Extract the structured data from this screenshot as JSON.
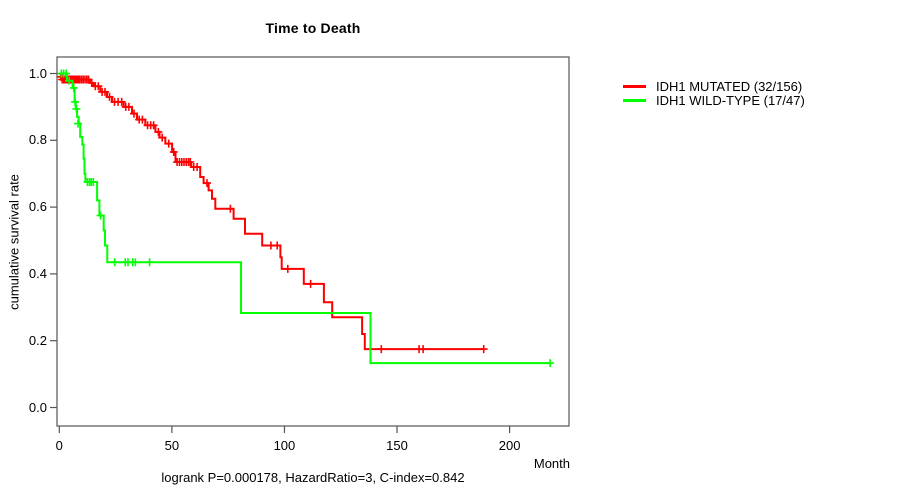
{
  "title": "Time to Death",
  "footer": "logrank P=0.000178, HazardRatio=3, C-index=0.842",
  "axes": {
    "x_label": "Month",
    "y_label": "cumulative survival rate",
    "x_ticks": [
      {
        "label": "0",
        "value": 0
      },
      {
        "label": "50",
        "value": 50
      },
      {
        "label": "100",
        "value": 100
      },
      {
        "label": "150",
        "value": 150
      },
      {
        "label": "200",
        "value": 200
      }
    ],
    "y_ticks": [
      {
        "label": "0.0",
        "value": 0.0
      },
      {
        "label": "0.2",
        "value": 0.2
      },
      {
        "label": "0.4",
        "value": 0.4
      },
      {
        "label": "0.6",
        "value": 0.6
      },
      {
        "label": "0.8",
        "value": 0.8
      },
      {
        "label": "1.0",
        "value": 1.0
      }
    ],
    "frame_color": "#555555",
    "text_color": "#000000"
  },
  "legend": {
    "items": [
      {
        "label": "IDH1 MUTATED (32/156)",
        "color": "#ff0000"
      },
      {
        "label": "IDH1 WILD-TYPE (17/47)",
        "color": "#00ff00"
      }
    ]
  },
  "chart_data": {
    "type": "line",
    "subtype": "kaplan-meier-step",
    "title": "Time to Death",
    "xlabel": "Month",
    "ylabel": "cumulative survival rate",
    "xlim": [
      0,
      226
    ],
    "ylim": [
      0,
      1.05
    ],
    "grid": false,
    "legend_position": "right-outside-top",
    "annotation": "logrank P=0.000178, HazardRatio=3, C-index=0.842",
    "series": [
      {
        "name": "IDH1 MUTATED (32/156)",
        "color": "#ff0000",
        "steps": [
          [
            0,
            1.0
          ],
          [
            1.0,
            0.99
          ],
          [
            2.5,
            0.982
          ],
          [
            13.8,
            0.972
          ],
          [
            15.2,
            0.962
          ],
          [
            18.2,
            0.945
          ],
          [
            21.2,
            0.93
          ],
          [
            23.4,
            0.915
          ],
          [
            28.6,
            0.9
          ],
          [
            32.3,
            0.88
          ],
          [
            34.5,
            0.862
          ],
          [
            38.2,
            0.845
          ],
          [
            42.7,
            0.825
          ],
          [
            44.5,
            0.808
          ],
          [
            47.1,
            0.79
          ],
          [
            50.1,
            0.765
          ],
          [
            51.6,
            0.735
          ],
          [
            58.6,
            0.72
          ],
          [
            62.6,
            0.69
          ],
          [
            64.1,
            0.672
          ],
          [
            66.3,
            0.65
          ],
          [
            67.8,
            0.625
          ],
          [
            69.3,
            0.595
          ],
          [
            77.4,
            0.565
          ],
          [
            82.5,
            0.52
          ],
          [
            90.1,
            0.485
          ],
          [
            98.2,
            0.45
          ],
          [
            98.8,
            0.415
          ],
          [
            108.6,
            0.37
          ],
          [
            117.5,
            0.315
          ],
          [
            121.2,
            0.27
          ],
          [
            134.5,
            0.22
          ],
          [
            135.7,
            0.175
          ]
        ],
        "end_month": 188.5,
        "censors": [
          [
            0.6,
            0.99
          ],
          [
            1.3,
            0.982
          ],
          [
            1.9,
            0.982
          ],
          [
            2.6,
            0.982
          ],
          [
            3.2,
            0.982
          ],
          [
            3.8,
            0.982
          ],
          [
            4.4,
            0.982
          ],
          [
            5.0,
            0.982
          ],
          [
            5.6,
            0.982
          ],
          [
            6.2,
            0.982
          ],
          [
            6.9,
            0.982
          ],
          [
            7.6,
            0.982
          ],
          [
            8.3,
            0.982
          ],
          [
            9.0,
            0.982
          ],
          [
            9.8,
            0.982
          ],
          [
            10.6,
            0.982
          ],
          [
            11.4,
            0.982
          ],
          [
            12.2,
            0.982
          ],
          [
            13.0,
            0.982
          ],
          [
            14.4,
            0.972
          ],
          [
            16.0,
            0.962
          ],
          [
            17.3,
            0.962
          ],
          [
            19.0,
            0.945
          ],
          [
            20.3,
            0.945
          ],
          [
            22.3,
            0.93
          ],
          [
            24.5,
            0.915
          ],
          [
            26.1,
            0.915
          ],
          [
            27.7,
            0.915
          ],
          [
            29.5,
            0.9
          ],
          [
            30.9,
            0.9
          ],
          [
            33.2,
            0.88
          ],
          [
            35.5,
            0.862
          ],
          [
            36.9,
            0.862
          ],
          [
            39.2,
            0.845
          ],
          [
            40.6,
            0.845
          ],
          [
            41.9,
            0.845
          ],
          [
            44.0,
            0.825
          ],
          [
            45.7,
            0.808
          ],
          [
            48.6,
            0.79
          ],
          [
            50.8,
            0.765
          ],
          [
            52.3,
            0.735
          ],
          [
            53.4,
            0.735
          ],
          [
            54.4,
            0.735
          ],
          [
            55.4,
            0.735
          ],
          [
            56.4,
            0.735
          ],
          [
            57.4,
            0.735
          ],
          [
            58.2,
            0.735
          ],
          [
            59.7,
            0.72
          ],
          [
            61.2,
            0.72
          ],
          [
            65.6,
            0.672
          ],
          [
            76.0,
            0.595
          ],
          [
            94.0,
            0.485
          ],
          [
            96.8,
            0.485
          ],
          [
            101.5,
            0.415
          ],
          [
            111.6,
            0.37
          ],
          [
            143.0,
            0.175
          ],
          [
            159.8,
            0.175
          ],
          [
            161.6,
            0.175
          ],
          [
            188.5,
            0.175
          ]
        ]
      },
      {
        "name": "IDH1 WILD-TYPE (17/47)",
        "color": "#00ff00",
        "steps": [
          [
            0,
            1.0
          ],
          [
            3.4,
            0.978
          ],
          [
            5.9,
            0.957
          ],
          [
            6.8,
            0.915
          ],
          [
            7.3,
            0.894
          ],
          [
            7.9,
            0.87
          ],
          [
            8.6,
            0.85
          ],
          [
            9.3,
            0.81
          ],
          [
            10.2,
            0.787
          ],
          [
            10.8,
            0.745
          ],
          [
            11.2,
            0.7
          ],
          [
            11.6,
            0.675
          ],
          [
            16.8,
            0.62
          ],
          [
            17.8,
            0.575
          ],
          [
            19.7,
            0.53
          ],
          [
            20.3,
            0.485
          ],
          [
            21.3,
            0.435
          ],
          [
            80.7,
            0.283
          ],
          [
            138.2,
            0.133
          ]
        ],
        "end_month": 218.0,
        "censors": [
          [
            0.9,
            1.0
          ],
          [
            1.9,
            1.0
          ],
          [
            3.0,
            1.0
          ],
          [
            4.4,
            0.978
          ],
          [
            6.4,
            0.957
          ],
          [
            7.0,
            0.915
          ],
          [
            7.6,
            0.894
          ],
          [
            8.3,
            0.85
          ],
          [
            12.5,
            0.675
          ],
          [
            13.4,
            0.675
          ],
          [
            14.2,
            0.675
          ],
          [
            15.1,
            0.675
          ],
          [
            18.3,
            0.575
          ],
          [
            24.6,
            0.435
          ],
          [
            29.3,
            0.435
          ],
          [
            30.5,
            0.435
          ],
          [
            32.6,
            0.435
          ],
          [
            33.8,
            0.435
          ],
          [
            40.1,
            0.435
          ],
          [
            218.0,
            0.133
          ]
        ]
      }
    ]
  }
}
